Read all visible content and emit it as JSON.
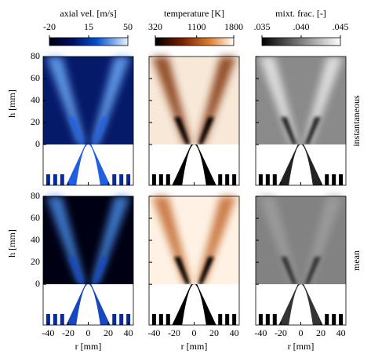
{
  "colorbars": [
    {
      "label": "axial vel. [m/s]",
      "lim": [
        -20,
        50
      ],
      "ticks": [
        -20,
        15,
        50
      ]
    },
    {
      "label": "temperature [K]",
      "lim": [
        320,
        1800
      ],
      "ticks": [
        320,
        1100,
        1800
      ]
    },
    {
      "label": "mixt. frac. [-]",
      "lim": [
        0.035,
        0.045
      ],
      "ticks": [
        {
          "value": 0.035,
          "label": ".035"
        },
        {
          "value": 0.04,
          "label": ".040"
        },
        {
          "value": 0.045,
          "label": ".045"
        }
      ]
    }
  ],
  "axes": {
    "ylabel": "h [mm]",
    "xlabel": "r [mm]",
    "xlim": [
      -45,
      45
    ],
    "ylim": [
      -37,
      80
    ],
    "xticks": [
      -40,
      -20,
      0,
      20,
      40
    ],
    "yticks": [
      80,
      60,
      40,
      20,
      0
    ]
  },
  "rows": [
    "instantaneous",
    "mean"
  ]
}
